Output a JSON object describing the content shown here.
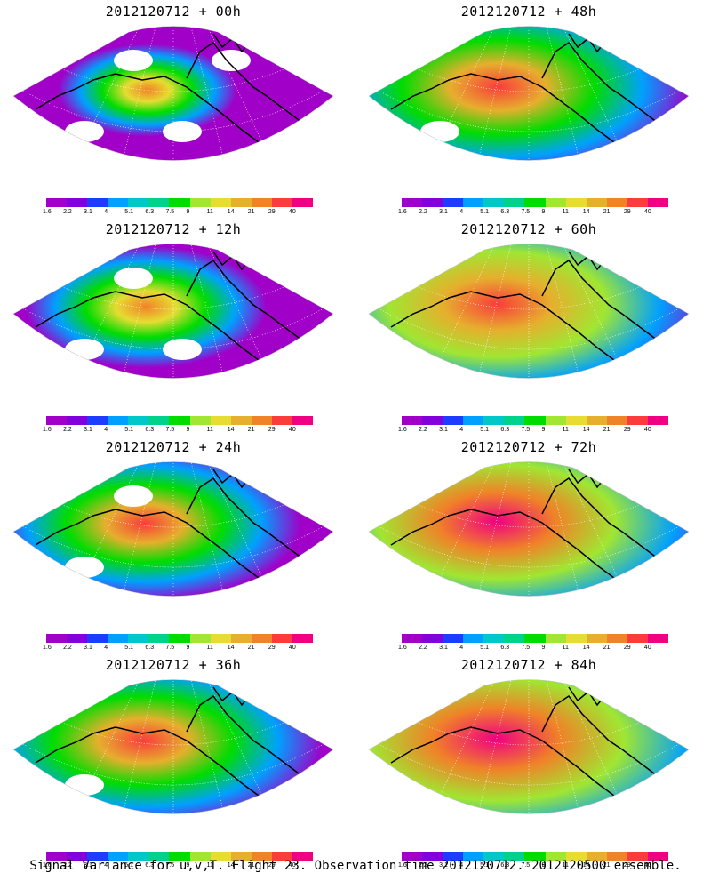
{
  "panels": [
    {
      "title": "2012120712 + 00h",
      "intensity": 0.25
    },
    {
      "title": "2012120712 + 48h",
      "intensity": 0.7
    },
    {
      "title": "2012120712 + 12h",
      "intensity": 0.4
    },
    {
      "title": "2012120712 + 60h",
      "intensity": 0.78
    },
    {
      "title": "2012120712 + 24h",
      "intensity": 0.55
    },
    {
      "title": "2012120712 + 72h",
      "intensity": 0.85
    },
    {
      "title": "2012120712 + 36h",
      "intensity": 0.65
    },
    {
      "title": "2012120712 + 84h",
      "intensity": 0.9
    }
  ],
  "colorbar": {
    "labels": [
      "1.6",
      "2.2",
      "3.1",
      "4",
      "5.1",
      "6.3",
      "7.5",
      "9",
      "11",
      "14",
      "21",
      "29",
      "40"
    ],
    "colors": [
      "#a000c8",
      "#8200dc",
      "#1e3cff",
      "#00a0ff",
      "#00c8c8",
      "#00d28c",
      "#00dc00",
      "#a0e632",
      "#e6dc32",
      "#e6af2d",
      "#f08228",
      "#fa3c3c",
      "#f00082"
    ]
  },
  "caption": "Signal Variance for u,v,T. Flight 23. Observation time 2012120712. 2012120500 ensemble."
}
